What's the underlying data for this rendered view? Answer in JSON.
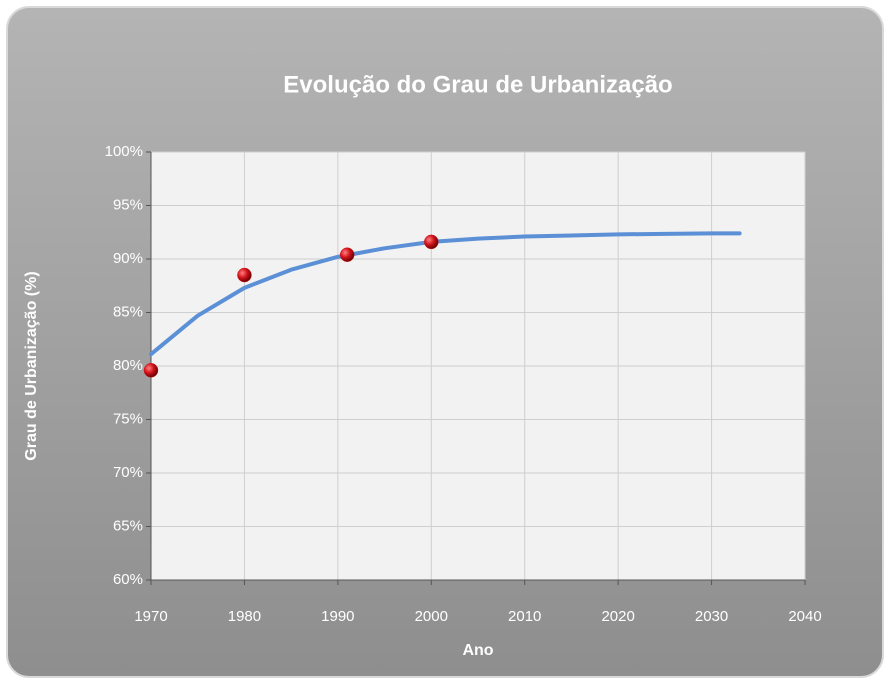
{
  "chart_data": {
    "type": "scatter",
    "title": "Evolução do Grau de Urbanização",
    "x_label": "Ano",
    "y_label": "Grau de Urbanização (%)",
    "xlim": [
      1970,
      2040
    ],
    "xticks": [
      1970,
      1980,
      1990,
      2000,
      2010,
      2020,
      2030,
      2040
    ],
    "ylim": [
      60,
      100
    ],
    "yticks": [
      {
        "value": 60,
        "label": "60%"
      },
      {
        "value": 65,
        "label": "65%"
      },
      {
        "value": 70,
        "label": "70%"
      },
      {
        "value": 75,
        "label": "75%"
      },
      {
        "value": 80,
        "label": "80%"
      },
      {
        "value": 85,
        "label": "85%"
      },
      {
        "value": 90,
        "label": "90%"
      },
      {
        "value": 95,
        "label": "95%"
      },
      {
        "value": 100,
        "label": "100%"
      }
    ],
    "grid": true,
    "series": [
      {
        "type": "line",
        "color": "#5b8fd6",
        "x": [
          1970,
          1975,
          1980,
          1985,
          1990,
          1995,
          2000,
          2005,
          2010,
          2015,
          2020,
          2025,
          2030,
          2033
        ],
        "values": [
          81.1,
          84.7,
          87.3,
          89.0,
          90.2,
          91.0,
          91.6,
          91.9,
          92.1,
          92.2,
          92.3,
          92.35,
          92.4,
          92.4
        ]
      },
      {
        "type": "scatter",
        "color": "#d0121a",
        "x": [
          1970,
          1980,
          1991,
          2000
        ],
        "values": [
          79.6,
          88.5,
          90.4,
          91.6
        ]
      }
    ]
  }
}
